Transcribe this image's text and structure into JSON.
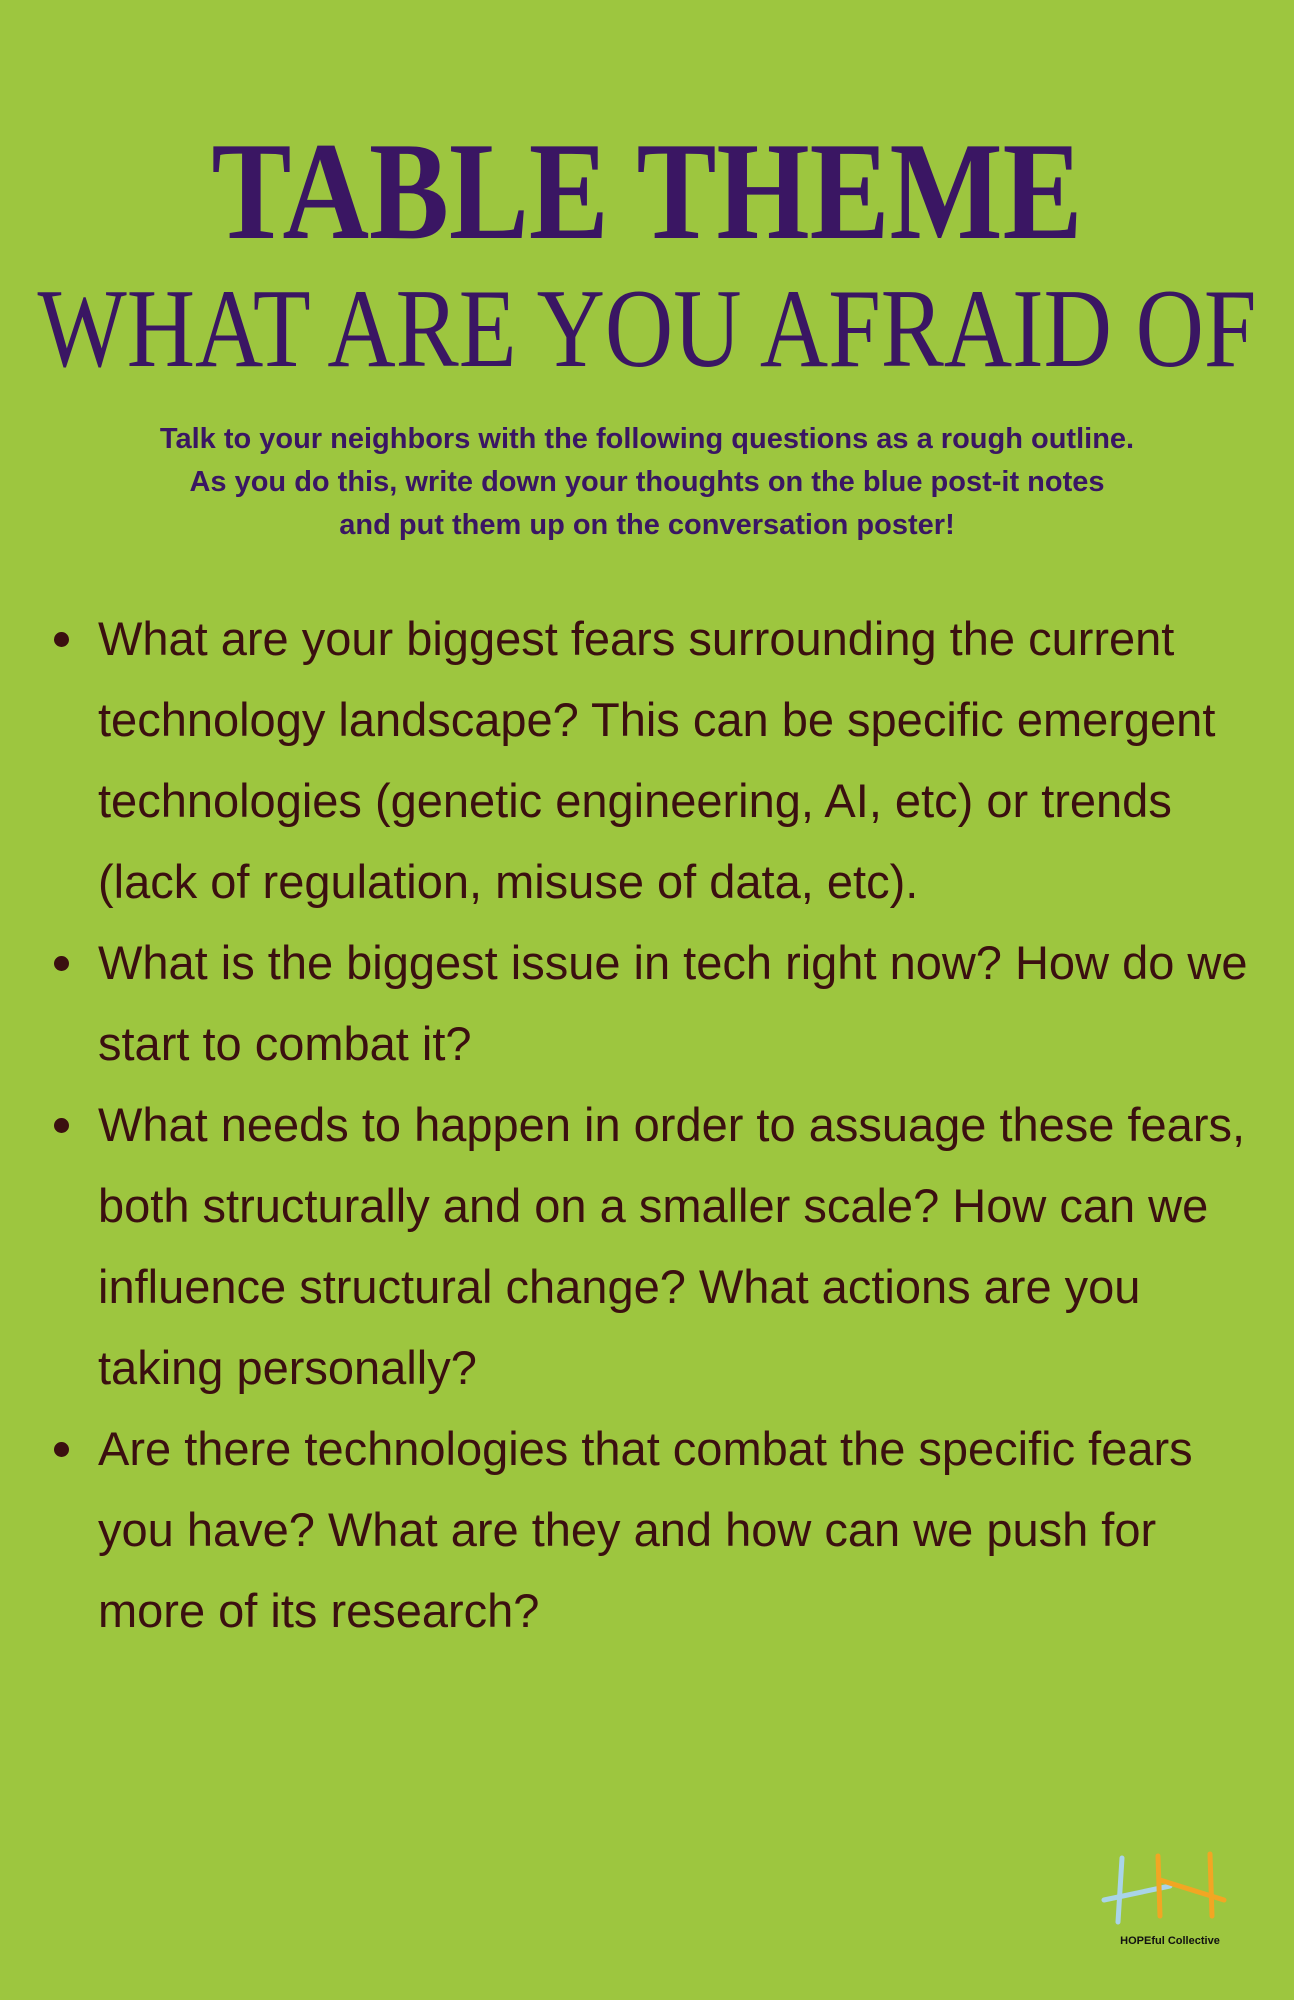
{
  "header": {
    "title": "TABLE THEME",
    "subtitle": "WHAT ARE YOU AFRAID OF"
  },
  "intro": [
    "Talk to your neighbors with the following questions as a rough outline.",
    "As you do this, write down your thoughts on the blue post-it notes",
    "and put them up on the conversation poster!"
  ],
  "questions": [
    "What are your biggest fears surrounding the current technology landscape? This can be specific emergent technologies (genetic engineering, AI, etc) or trends (lack of regulation, misuse of data, etc).",
    "What is the biggest issue in tech right now? How do we start to combat it?",
    "What needs to happen in order to assuage these fears, both structurally and on a smaller scale? How can we influence structural change? What actions are you taking personally?",
    "Are there technologies that combat the specific fears you have? What are they and how can we push for more of its research?"
  ],
  "logo": {
    "label": "HOPEful Collective"
  }
}
